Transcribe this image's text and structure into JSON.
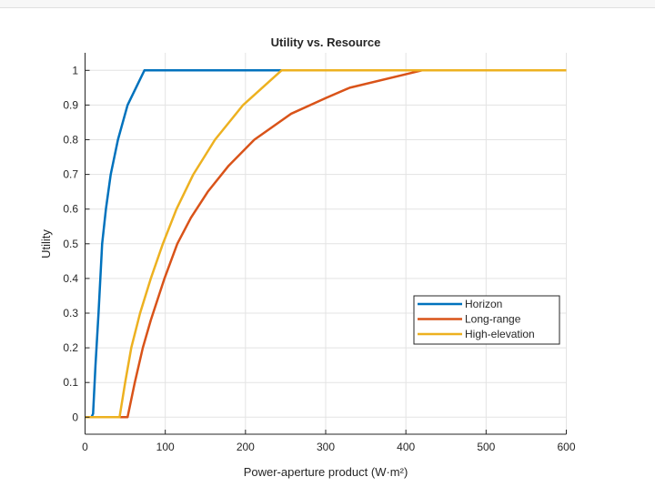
{
  "chart_data": {
    "type": "line",
    "title": "Utility vs. Resource",
    "xlabel": "Power-aperture product (W·m²)",
    "ylabel": "Utility",
    "xlim": [
      0,
      600
    ],
    "ylim": [
      0,
      1
    ],
    "xticks": [
      0,
      100,
      200,
      300,
      400,
      500,
      600
    ],
    "yticks": [
      0,
      0.1,
      0.2,
      0.3,
      0.4,
      0.5,
      0.6,
      0.7,
      0.8,
      0.9,
      1
    ],
    "ytick_labels": [
      "0",
      "0.1",
      "0.2",
      "0.3",
      "0.4",
      "0.5",
      "0.6",
      "0.7",
      "0.8",
      "0.9",
      "1"
    ],
    "grid": true,
    "legend_position": "lower-right",
    "series": [
      {
        "name": "Horizon",
        "color": "#0072BD",
        "x": [
          0,
          8,
          10,
          13,
          16.8,
          21.3,
          26,
          32,
          41,
          53,
          74,
          600
        ],
        "y": [
          0,
          0,
          0.01,
          0.15,
          0.3,
          0.5,
          0.6,
          0.7,
          0.8,
          0.9,
          1,
          1
        ]
      },
      {
        "name": "Long-range",
        "color": "#D95319",
        "x": [
          0,
          53,
          62,
          72,
          82,
          99,
          115,
          132,
          153,
          179,
          211,
          257,
          300,
          330,
          420,
          600
        ],
        "y": [
          0,
          0,
          0.1,
          0.2,
          0.28,
          0.4,
          0.5,
          0.575,
          0.65,
          0.725,
          0.8,
          0.875,
          0.92,
          0.95,
          1,
          1
        ]
      },
      {
        "name": "High-elevation",
        "color": "#EDB120",
        "x": [
          0,
          43,
          50,
          57.6,
          68.6,
          82,
          97,
          114,
          135,
          162,
          197,
          245,
          600
        ],
        "y": [
          0,
          0,
          0.1,
          0.2,
          0.3,
          0.4,
          0.5,
          0.6,
          0.7,
          0.8,
          0.9,
          1,
          1
        ]
      }
    ]
  }
}
